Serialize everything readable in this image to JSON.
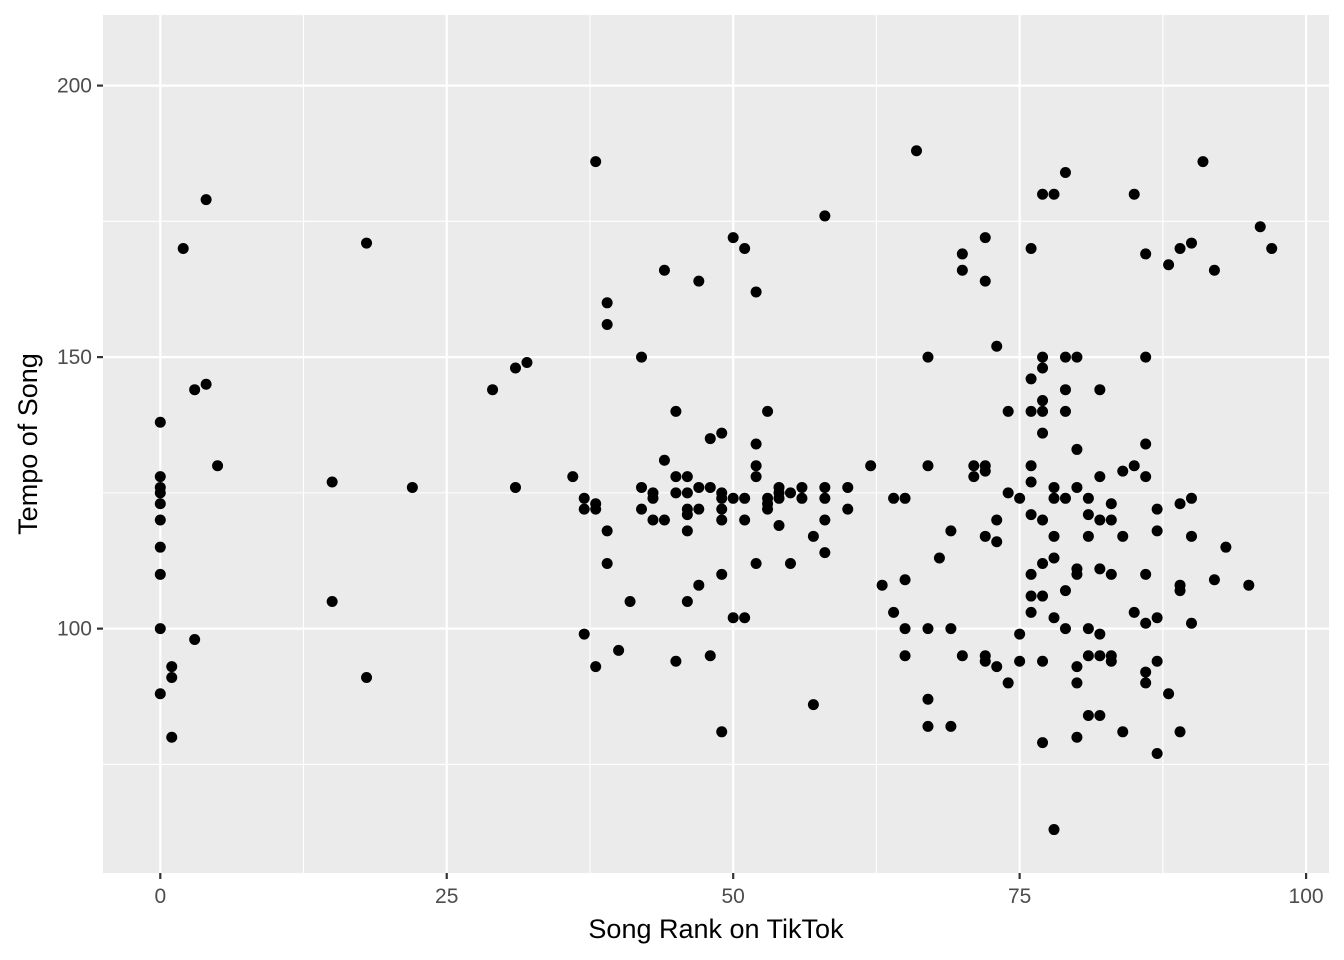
{
  "chart_data": {
    "type": "scatter",
    "title": "",
    "xlabel": "Song Rank on TikTok",
    "ylabel": "Tempo of Song",
    "xlim": [
      -5,
      102
    ],
    "ylim": [
      55,
      213
    ],
    "x_ticks": [
      0,
      25,
      50,
      75,
      100
    ],
    "x_minor_ticks": [
      12.5,
      37.5,
      62.5,
      87.5
    ],
    "y_ticks": [
      100,
      150,
      200
    ],
    "y_minor_ticks": [
      75,
      125,
      175
    ],
    "grid": true,
    "panel_color": "#ebebeb",
    "grid_color": "#ffffff",
    "point_color": "#000000",
    "points": [
      [
        0,
        138
      ],
      [
        0,
        128
      ],
      [
        0,
        126
      ],
      [
        0,
        125
      ],
      [
        0,
        123
      ],
      [
        0,
        120
      ],
      [
        0,
        115
      ],
      [
        0,
        110
      ],
      [
        0,
        100
      ],
      [
        0,
        88
      ],
      [
        1,
        93
      ],
      [
        1,
        91
      ],
      [
        1,
        80
      ],
      [
        2,
        170
      ],
      [
        3,
        144
      ],
      [
        3,
        98
      ],
      [
        4,
        145
      ],
      [
        4,
        179
      ],
      [
        5,
        130
      ],
      [
        15,
        127
      ],
      [
        15,
        105
      ],
      [
        18,
        171
      ],
      [
        18,
        91
      ],
      [
        22,
        126
      ],
      [
        29,
        144
      ],
      [
        31,
        148
      ],
      [
        31,
        126
      ],
      [
        32,
        149
      ],
      [
        36,
        128
      ],
      [
        37,
        124
      ],
      [
        37,
        122
      ],
      [
        37,
        99
      ],
      [
        38,
        186
      ],
      [
        38,
        123
      ],
      [
        38,
        122
      ],
      [
        38,
        93
      ],
      [
        39,
        160
      ],
      [
        39,
        156
      ],
      [
        39,
        118
      ],
      [
        39,
        112
      ],
      [
        40,
        96
      ],
      [
        41,
        105
      ],
      [
        42,
        150
      ],
      [
        42,
        126
      ],
      [
        42,
        122
      ],
      [
        43,
        125
      ],
      [
        43,
        124
      ],
      [
        43,
        120
      ],
      [
        44,
        166
      ],
      [
        44,
        131
      ],
      [
        44,
        120
      ],
      [
        45,
        140
      ],
      [
        45,
        128
      ],
      [
        45,
        125
      ],
      [
        45,
        94
      ],
      [
        46,
        128
      ],
      [
        46,
        125
      ],
      [
        46,
        122
      ],
      [
        46,
        121
      ],
      [
        46,
        118
      ],
      [
        46,
        105
      ],
      [
        47,
        164
      ],
      [
        47,
        126
      ],
      [
        47,
        122
      ],
      [
        47,
        108
      ],
      [
        48,
        135
      ],
      [
        48,
        126
      ],
      [
        48,
        95
      ],
      [
        49,
        136
      ],
      [
        49,
        125
      ],
      [
        49,
        124
      ],
      [
        49,
        122
      ],
      [
        49,
        120
      ],
      [
        49,
        110
      ],
      [
        49,
        81
      ],
      [
        50,
        172
      ],
      [
        50,
        124
      ],
      [
        50,
        102
      ],
      [
        51,
        170
      ],
      [
        51,
        124
      ],
      [
        51,
        120
      ],
      [
        51,
        102
      ],
      [
        52,
        162
      ],
      [
        52,
        134
      ],
      [
        52,
        130
      ],
      [
        52,
        128
      ],
      [
        52,
        112
      ],
      [
        53,
        140
      ],
      [
        53,
        124
      ],
      [
        53,
        123
      ],
      [
        53,
        122
      ],
      [
        54,
        126
      ],
      [
        54,
        125
      ],
      [
        54,
        124
      ],
      [
        54,
        119
      ],
      [
        55,
        125
      ],
      [
        55,
        112
      ],
      [
        56,
        126
      ],
      [
        56,
        124
      ],
      [
        57,
        117
      ],
      [
        57,
        86
      ],
      [
        58,
        176
      ],
      [
        58,
        126
      ],
      [
        58,
        124
      ],
      [
        58,
        120
      ],
      [
        58,
        114
      ],
      [
        60,
        126
      ],
      [
        60,
        122
      ],
      [
        62,
        130
      ],
      [
        63,
        108
      ],
      [
        64,
        124
      ],
      [
        64,
        103
      ],
      [
        65,
        124
      ],
      [
        65,
        109
      ],
      [
        65,
        100
      ],
      [
        65,
        95
      ],
      [
        66,
        188
      ],
      [
        67,
        150
      ],
      [
        67,
        130
      ],
      [
        67,
        100
      ],
      [
        67,
        87
      ],
      [
        67,
        82
      ],
      [
        68,
        113
      ],
      [
        69,
        118
      ],
      [
        69,
        100
      ],
      [
        69,
        82
      ],
      [
        70,
        169
      ],
      [
        70,
        166
      ],
      [
        70,
        95
      ],
      [
        71,
        130
      ],
      [
        71,
        128
      ],
      [
        72,
        172
      ],
      [
        72,
        164
      ],
      [
        72,
        130
      ],
      [
        72,
        129
      ],
      [
        72,
        117
      ],
      [
        72,
        94
      ],
      [
        72,
        95
      ],
      [
        73,
        152
      ],
      [
        73,
        120
      ],
      [
        73,
        116
      ],
      [
        73,
        93
      ],
      [
        74,
        140
      ],
      [
        74,
        125
      ],
      [
        74,
        90
      ],
      [
        75,
        124
      ],
      [
        75,
        99
      ],
      [
        75,
        94
      ],
      [
        76,
        170
      ],
      [
        76,
        146
      ],
      [
        76,
        140
      ],
      [
        76,
        130
      ],
      [
        76,
        127
      ],
      [
        76,
        121
      ],
      [
        76,
        110
      ],
      [
        76,
        106
      ],
      [
        76,
        103
      ],
      [
        77,
        180
      ],
      [
        77,
        150
      ],
      [
        77,
        148
      ],
      [
        77,
        142
      ],
      [
        77,
        140
      ],
      [
        77,
        136
      ],
      [
        77,
        120
      ],
      [
        77,
        112
      ],
      [
        77,
        106
      ],
      [
        77,
        94
      ],
      [
        77,
        79
      ],
      [
        78,
        180
      ],
      [
        78,
        126
      ],
      [
        78,
        124
      ],
      [
        78,
        117
      ],
      [
        78,
        113
      ],
      [
        78,
        102
      ],
      [
        78,
        63
      ],
      [
        79,
        184
      ],
      [
        79,
        150
      ],
      [
        79,
        144
      ],
      [
        79,
        140
      ],
      [
        79,
        124
      ],
      [
        79,
        107
      ],
      [
        79,
        100
      ],
      [
        80,
        150
      ],
      [
        80,
        133
      ],
      [
        80,
        126
      ],
      [
        80,
        111
      ],
      [
        80,
        110
      ],
      [
        80,
        93
      ],
      [
        80,
        90
      ],
      [
        80,
        80
      ],
      [
        81,
        124
      ],
      [
        81,
        121
      ],
      [
        81,
        117
      ],
      [
        81,
        100
      ],
      [
        81,
        95
      ],
      [
        81,
        84
      ],
      [
        82,
        144
      ],
      [
        82,
        128
      ],
      [
        82,
        120
      ],
      [
        82,
        111
      ],
      [
        82,
        99
      ],
      [
        82,
        95
      ],
      [
        82,
        84
      ],
      [
        83,
        123
      ],
      [
        83,
        120
      ],
      [
        83,
        110
      ],
      [
        83,
        95
      ],
      [
        83,
        94
      ],
      [
        84,
        129
      ],
      [
        84,
        117
      ],
      [
        84,
        81
      ],
      [
        85,
        180
      ],
      [
        85,
        130
      ],
      [
        85,
        103
      ],
      [
        86,
        169
      ],
      [
        86,
        150
      ],
      [
        86,
        134
      ],
      [
        86,
        128
      ],
      [
        86,
        110
      ],
      [
        86,
        101
      ],
      [
        86,
        92
      ],
      [
        86,
        90
      ],
      [
        87,
        122
      ],
      [
        87,
        118
      ],
      [
        87,
        102
      ],
      [
        87,
        94
      ],
      [
        87,
        77
      ],
      [
        88,
        167
      ],
      [
        88,
        88
      ],
      [
        89,
        170
      ],
      [
        89,
        123
      ],
      [
        89,
        108
      ],
      [
        89,
        107
      ],
      [
        89,
        81
      ],
      [
        90,
        171
      ],
      [
        90,
        124
      ],
      [
        90,
        117
      ],
      [
        90,
        101
      ],
      [
        91,
        186
      ],
      [
        92,
        166
      ],
      [
        92,
        109
      ],
      [
        93,
        115
      ],
      [
        95,
        108
      ],
      [
        96,
        174
      ],
      [
        97,
        170
      ]
    ]
  }
}
